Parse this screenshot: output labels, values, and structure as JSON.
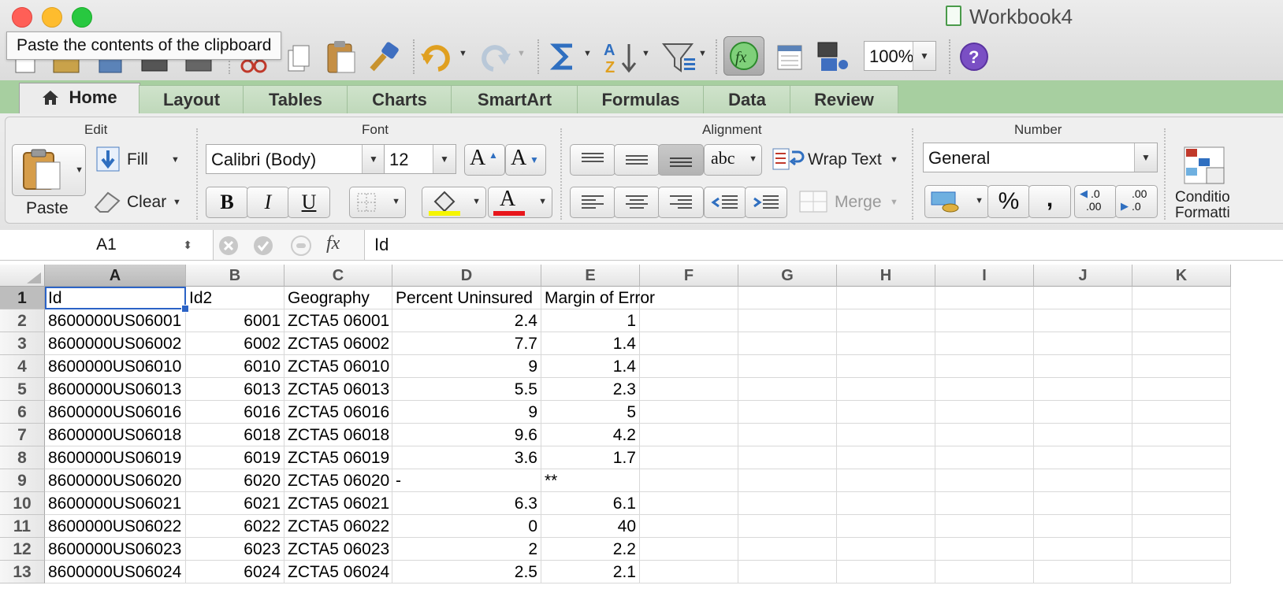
{
  "window": {
    "title": "Workbook4",
    "tooltip": "Paste the contents of the clipboard",
    "colors": {
      "close": "#ff5f57",
      "minimize": "#febc2e",
      "maximize": "#28c840"
    }
  },
  "toolbar": {
    "zoom": "100%",
    "icons": [
      "new-icon",
      "open-icon",
      "save-icon",
      "print-icon",
      "cut-icon",
      "copy-icon",
      "paste-icon",
      "format-painter-icon",
      "undo-icon",
      "redo-icon",
      "autosum-icon",
      "sort-icon",
      "filter-icon",
      "formula-builder-icon",
      "gallery-icon",
      "media-icon",
      "help-icon"
    ]
  },
  "tabs": [
    "Home",
    "Layout",
    "Tables",
    "Charts",
    "SmartArt",
    "Formulas",
    "Data",
    "Review"
  ],
  "active_tab": "Home",
  "ribbon": {
    "edit": {
      "title": "Edit",
      "paste": "Paste",
      "fill": "Fill",
      "clear": "Clear"
    },
    "font": {
      "title": "Font",
      "name": "Calibri (Body)",
      "size": "12",
      "bold": "B",
      "italic": "I",
      "underline": "U",
      "grow": "A",
      "shrink": "A",
      "color_glyph": "A",
      "highlight_color": "#f5f500",
      "font_color": "#e8161b"
    },
    "alignment": {
      "title": "Alignment",
      "orientation": "abc",
      "wrap_text": "Wrap Text",
      "merge": "Merge"
    },
    "number": {
      "title": "Number",
      "format": "General",
      "percent": "%",
      "comma": ",",
      "inc_decimal": ".0",
      "dec_decimal": ".00"
    },
    "conditional": {
      "label1": "Conditio",
      "label2": "Formatti"
    }
  },
  "formula_bar": {
    "name_box": "A1",
    "fx": "fx",
    "content": "Id"
  },
  "grid": {
    "columns": [
      "A",
      "B",
      "C",
      "D",
      "E",
      "F",
      "G",
      "H",
      "I",
      "J",
      "K"
    ],
    "selected_column": "A",
    "selected_row": "1",
    "row_numbers": [
      "1",
      "2",
      "3",
      "4",
      "5",
      "6",
      "7",
      "8",
      "9",
      "10",
      "11",
      "12",
      "13"
    ],
    "header_row": [
      "Id",
      "Id2",
      "Geography",
      "Percent Uninsured",
      "Margin of Error"
    ],
    "rows": [
      [
        "8600000US06001",
        "6001",
        "ZCTA5 06001",
        "2.4",
        "1"
      ],
      [
        "8600000US06002",
        "6002",
        "ZCTA5 06002",
        "7.7",
        "1.4"
      ],
      [
        "8600000US06010",
        "6010",
        "ZCTA5 06010",
        "9",
        "1.4"
      ],
      [
        "8600000US06013",
        "6013",
        "ZCTA5 06013",
        "5.5",
        "2.3"
      ],
      [
        "8600000US06016",
        "6016",
        "ZCTA5 06016",
        "9",
        "5"
      ],
      [
        "8600000US06018",
        "6018",
        "ZCTA5 06018",
        "9.6",
        "4.2"
      ],
      [
        "8600000US06019",
        "6019",
        "ZCTA5 06019",
        "3.6",
        "1.7"
      ],
      [
        "8600000US06020",
        "6020",
        "ZCTA5 06020",
        "-",
        "**"
      ],
      [
        "8600000US06021",
        "6021",
        "ZCTA5 06021",
        "6.3",
        "6.1"
      ],
      [
        "8600000US06022",
        "6022",
        "ZCTA5 06022",
        "0",
        "40"
      ],
      [
        "8600000US06023",
        "6023",
        "ZCTA5 06023",
        "2",
        "2.2"
      ],
      [
        "8600000US06024",
        "6024",
        "ZCTA5 06024",
        "2.5",
        "2.1"
      ]
    ]
  }
}
